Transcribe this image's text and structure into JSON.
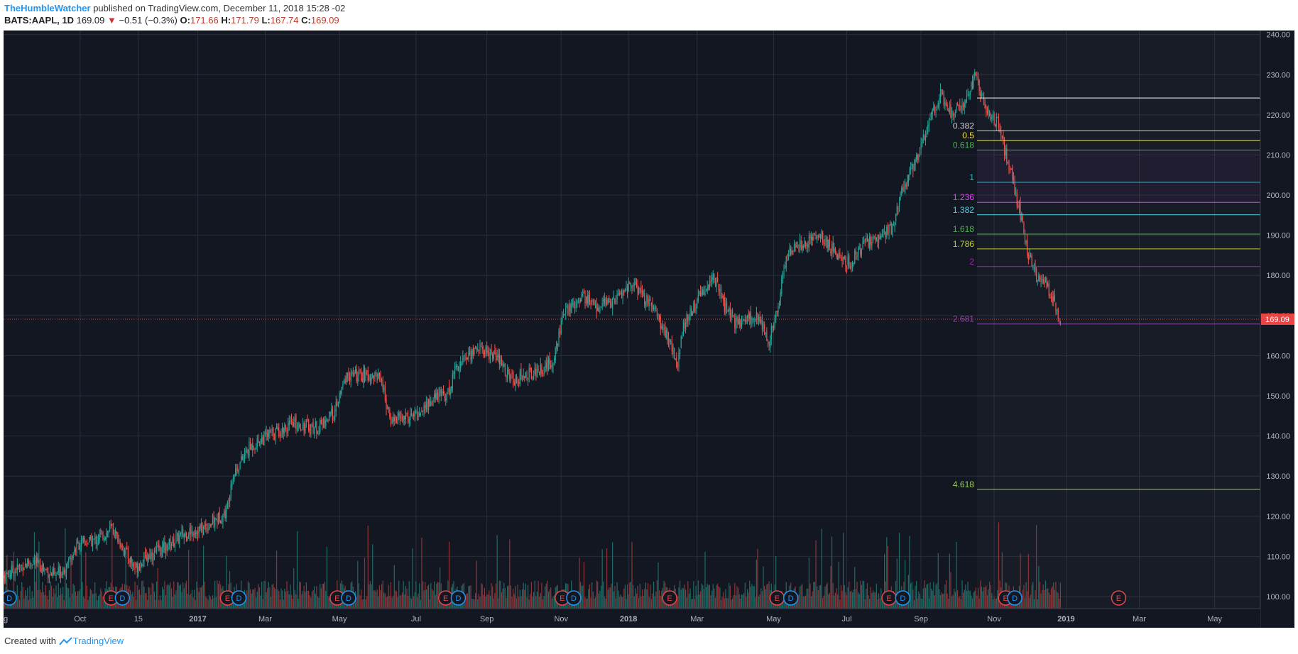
{
  "header": {
    "author": "TheHumbleWatcher",
    "published": " published on TradingView.com, December 11, 2018 15:28 -02",
    "symbol": "BATS:AAPL, 1D",
    "last": "169.09",
    "change_arrow": "▼",
    "change": "−0.51 (−0.3%)",
    "open_label": "O:",
    "open": "171.66",
    "high_label": "H:",
    "high": "171.79",
    "low_label": "L:",
    "low": "167.74",
    "close_label": "C:",
    "close": "169.09"
  },
  "footer": {
    "created_with": "Created with",
    "brand": "TradingView"
  },
  "colors": {
    "background": "#131722",
    "grid": "#2a2e39",
    "up": "#26a69a",
    "down": "#ef5350",
    "vol_up": "#1f6b66",
    "vol_down": "#8a3537",
    "price_tag": "#e84646",
    "axis_text": "#b2b5be"
  },
  "chart_data": {
    "type": "candlestick",
    "y_axis": {
      "ticks": [
        "240.00",
        "230.00",
        "220.00",
        "210.00",
        "200.00",
        "190.00",
        "180.00",
        "170.00",
        "160.00",
        "150.00",
        "140.00",
        "130.00",
        "120.00",
        "110.00",
        "100.00"
      ],
      "min": 97,
      "max": 241
    },
    "x_axis": {
      "ticks": [
        {
          "label": "ug",
          "bold": false,
          "day": 0
        },
        {
          "label": "Oct",
          "bold": false,
          "day": 67
        },
        {
          "label": "15",
          "bold": false,
          "day": 118
        },
        {
          "label": "2017",
          "bold": true,
          "day": 170
        },
        {
          "label": "Mar",
          "bold": false,
          "day": 229
        },
        {
          "label": "May",
          "bold": false,
          "day": 294
        },
        {
          "label": "Jul",
          "bold": false,
          "day": 361
        },
        {
          "label": "Sep",
          "bold": false,
          "day": 423
        },
        {
          "label": "Nov",
          "bold": false,
          "day": 488
        },
        {
          "label": "2018",
          "bold": true,
          "day": 547
        },
        {
          "label": "Mar",
          "bold": false,
          "day": 607
        },
        {
          "label": "May",
          "bold": false,
          "day": 674
        },
        {
          "label": "Jul",
          "bold": false,
          "day": 738
        },
        {
          "label": "Sep",
          "bold": false,
          "day": 803
        },
        {
          "label": "Nov",
          "bold": false,
          "day": 867
        },
        {
          "label": "2019",
          "bold": true,
          "day": 930
        },
        {
          "label": "Mar",
          "bold": false,
          "day": 994
        },
        {
          "label": "May",
          "bold": false,
          "day": 1060
        }
      ],
      "total_days": 1100
    },
    "price_path": [
      {
        "day": 0,
        "price": 105
      },
      {
        "day": 25,
        "price": 109
      },
      {
        "day": 45,
        "price": 105
      },
      {
        "day": 55,
        "price": 108
      },
      {
        "day": 65,
        "price": 113
      },
      {
        "day": 80,
        "price": 114
      },
      {
        "day": 95,
        "price": 117
      },
      {
        "day": 105,
        "price": 112
      },
      {
        "day": 115,
        "price": 107
      },
      {
        "day": 125,
        "price": 110
      },
      {
        "day": 140,
        "price": 112
      },
      {
        "day": 160,
        "price": 116
      },
      {
        "day": 175,
        "price": 117
      },
      {
        "day": 195,
        "price": 121
      },
      {
        "day": 200,
        "price": 130
      },
      {
        "day": 215,
        "price": 137
      },
      {
        "day": 230,
        "price": 140
      },
      {
        "day": 255,
        "price": 143
      },
      {
        "day": 275,
        "price": 142
      },
      {
        "day": 290,
        "price": 146
      },
      {
        "day": 300,
        "price": 155
      },
      {
        "day": 330,
        "price": 155
      },
      {
        "day": 338,
        "price": 144
      },
      {
        "day": 360,
        "price": 145
      },
      {
        "day": 380,
        "price": 150
      },
      {
        "day": 390,
        "price": 151
      },
      {
        "day": 395,
        "price": 157
      },
      {
        "day": 415,
        "price": 162
      },
      {
        "day": 430,
        "price": 160
      },
      {
        "day": 445,
        "price": 154
      },
      {
        "day": 465,
        "price": 156
      },
      {
        "day": 480,
        "price": 158
      },
      {
        "day": 490,
        "price": 170
      },
      {
        "day": 505,
        "price": 175
      },
      {
        "day": 520,
        "price": 172
      },
      {
        "day": 535,
        "price": 174
      },
      {
        "day": 550,
        "price": 178
      },
      {
        "day": 570,
        "price": 171
      },
      {
        "day": 585,
        "price": 162
      },
      {
        "day": 590,
        "price": 157
      },
      {
        "day": 595,
        "price": 168
      },
      {
        "day": 610,
        "price": 175
      },
      {
        "day": 622,
        "price": 180
      },
      {
        "day": 630,
        "price": 173
      },
      {
        "day": 640,
        "price": 168
      },
      {
        "day": 660,
        "price": 170
      },
      {
        "day": 670,
        "price": 164
      },
      {
        "day": 678,
        "price": 172
      },
      {
        "day": 685,
        "price": 185
      },
      {
        "day": 700,
        "price": 188
      },
      {
        "day": 715,
        "price": 190
      },
      {
        "day": 730,
        "price": 185
      },
      {
        "day": 740,
        "price": 183
      },
      {
        "day": 755,
        "price": 188
      },
      {
        "day": 770,
        "price": 190
      },
      {
        "day": 778,
        "price": 192
      },
      {
        "day": 785,
        "price": 200
      },
      {
        "day": 800,
        "price": 210
      },
      {
        "day": 810,
        "price": 218
      },
      {
        "day": 820,
        "price": 225
      },
      {
        "day": 830,
        "price": 220
      },
      {
        "day": 843,
        "price": 224
      },
      {
        "day": 850,
        "price": 230
      },
      {
        "day": 862,
        "price": 220
      },
      {
        "day": 870,
        "price": 218
      },
      {
        "day": 875,
        "price": 212
      },
      {
        "day": 882,
        "price": 205
      },
      {
        "day": 892,
        "price": 192
      },
      {
        "day": 897,
        "price": 185
      },
      {
        "day": 905,
        "price": 179
      },
      {
        "day": 912,
        "price": 178
      },
      {
        "day": 918,
        "price": 174
      },
      {
        "day": 925,
        "price": 169
      }
    ],
    "last_price": 169.09,
    "last_price_label": "169.09",
    "fib_start_day": 852,
    "fib_end_day": 1100,
    "fib_levels": [
      {
        "label": "",
        "price": 224.2,
        "color": "#ffffff"
      },
      {
        "label": "0.382",
        "price": 216.0,
        "color": "#d0d0d0"
      },
      {
        "label": "0.5",
        "price": 213.6,
        "color": "#f3e54a"
      },
      {
        "label": "0.618",
        "price": 211.2,
        "color": "#4caf50"
      },
      {
        "label": "1",
        "price": 203.2,
        "color": "#29b6c6"
      },
      {
        "label": "1.236",
        "price": 198.2,
        "color": "#e040fb"
      },
      {
        "label": "1.382",
        "price": 195.1,
        "color": "#4dd0e1"
      },
      {
        "label": "1.618",
        "price": 190.3,
        "color": "#4caf50"
      },
      {
        "label": "1.786",
        "price": 186.6,
        "color": "#c0ca33"
      },
      {
        "label": "2",
        "price": 182.2,
        "color": "#9c27b0"
      },
      {
        "label": "2.681",
        "price": 167.9,
        "color": "#8e44ad"
      },
      {
        "label": "4.618",
        "price": 126.7,
        "color": "#9ccc65"
      }
    ],
    "earnings_markers": [
      {
        "day": 5,
        "type": "D"
      },
      {
        "day": 94,
        "type": "E"
      },
      {
        "day": 104,
        "type": "D"
      },
      {
        "day": 196,
        "type": "E"
      },
      {
        "day": 206,
        "type": "D"
      },
      {
        "day": 292,
        "type": "E"
      },
      {
        "day": 302,
        "type": "D"
      },
      {
        "day": 387,
        "type": "E"
      },
      {
        "day": 398,
        "type": "D"
      },
      {
        "day": 489,
        "type": "E"
      },
      {
        "day": 499,
        "type": "D"
      },
      {
        "day": 583,
        "type": "E"
      },
      {
        "day": 677,
        "type": "E"
      },
      {
        "day": 689,
        "type": "D"
      },
      {
        "day": 775,
        "type": "E"
      },
      {
        "day": 787,
        "type": "D"
      },
      {
        "day": 877,
        "type": "E"
      },
      {
        "day": 885,
        "type": "D"
      },
      {
        "day": 976,
        "type": "E"
      }
    ]
  }
}
